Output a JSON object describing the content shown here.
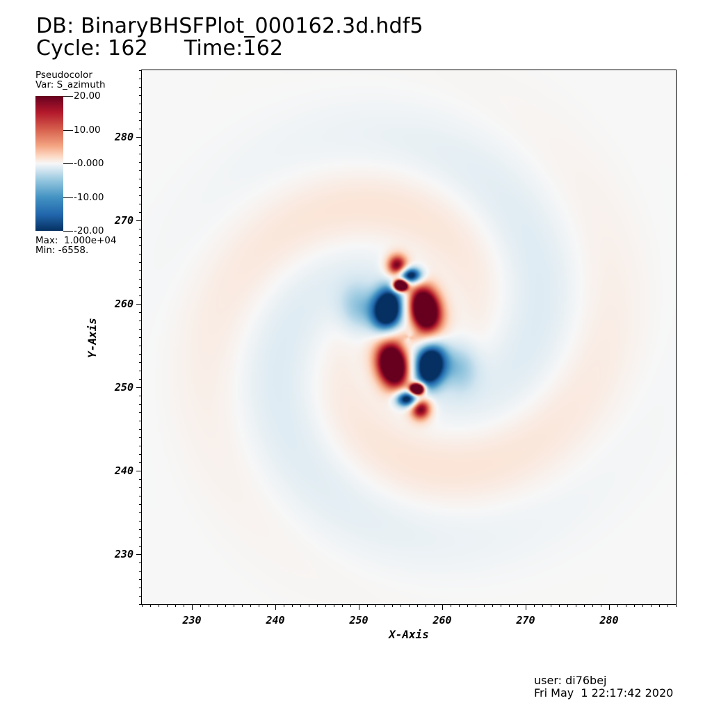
{
  "header": {
    "db_label": "DB: BinaryBHSFPlot_000162.3d.hdf5",
    "cycle_label": "Cycle: 162",
    "time_label": "Time:162"
  },
  "legend": {
    "title": "Pseudocolor",
    "var": "Var: S_azimuth",
    "max": "Max:  1.000e+04",
    "min": "Min: -6558.",
    "ticks": [
      "20.00",
      "10.00",
      "-0.000",
      "-10.00",
      "-20.00"
    ],
    "tick_values": [
      20,
      10,
      0,
      -10,
      -20
    ],
    "range": [
      -20,
      20
    ],
    "colormap": [
      "#053061",
      "#2166ac",
      "#4393c3",
      "#92c5de",
      "#d1e5f0",
      "#f7f7f7",
      "#fddbc7",
      "#f4a582",
      "#d6604d",
      "#b2182b",
      "#67001f"
    ]
  },
  "chart_data": {
    "type": "heatmap",
    "xlabel": "X-Axis",
    "ylabel": "Y-Axis",
    "xlim": [
      224,
      288
    ],
    "ylim": [
      224,
      288
    ],
    "xticks": [
      230,
      240,
      250,
      260,
      270,
      280
    ],
    "yticks": [
      230,
      240,
      250,
      260,
      270,
      280
    ],
    "xtick_labels": [
      "230",
      "240",
      "250",
      "260",
      "270",
      "280"
    ],
    "ytick_labels": [
      "230",
      "240",
      "250",
      "260",
      "270",
      "280"
    ],
    "grid": false,
    "legend_placement": "top-left",
    "center": [
      256,
      256
    ],
    "features": [
      {
        "x": 255.0,
        "y": 262.2,
        "value": 20
      },
      {
        "x": 253.5,
        "y": 259.3,
        "value": -20
      },
      {
        "x": 257.9,
        "y": 259.3,
        "value": 20
      },
      {
        "x": 257.0,
        "y": 249.8,
        "value": 20
      },
      {
        "x": 258.5,
        "y": 252.7,
        "value": -20
      },
      {
        "x": 254.1,
        "y": 252.7,
        "value": 20
      }
    ]
  },
  "footer": {
    "user": "user: di76bej",
    "date": "Fri May  1 22:17:42 2020"
  }
}
